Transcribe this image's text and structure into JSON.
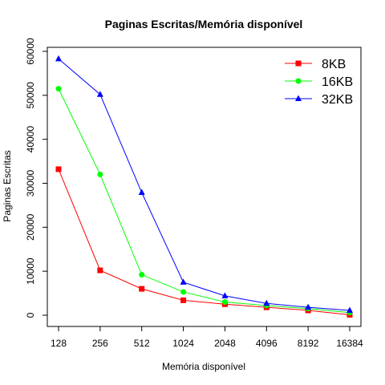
{
  "chart_data": {
    "type": "line",
    "title": "Paginas Escritas/Memória disponível",
    "xlabel": "Memória disponível",
    "ylabel": "Paginas Escritas",
    "categories": [
      "128",
      "256",
      "512",
      "1024",
      "2048",
      "4096",
      "8192",
      "16384"
    ],
    "ylim": [
      0,
      60000
    ],
    "yticks": [
      0,
      10000,
      20000,
      30000,
      40000,
      50000,
      60000
    ],
    "ytick_labels": [
      "0",
      "10000",
      "20000",
      "30000",
      "40000",
      "50000",
      "60000"
    ],
    "legend_position": "top-right",
    "grid": false,
    "series": [
      {
        "name": "8KB",
        "color": "#ff0000",
        "marker": "square",
        "values": [
          33200,
          10200,
          6000,
          3400,
          2500,
          1800,
          1100,
          100
        ]
      },
      {
        "name": "16KB",
        "color": "#00ff00",
        "marker": "circle",
        "values": [
          51500,
          32000,
          9200,
          5300,
          3000,
          2200,
          1500,
          600
        ]
      },
      {
        "name": "32KB",
        "color": "#0000ff",
        "marker": "triangle",
        "values": [
          58300,
          50200,
          27900,
          7500,
          4400,
          2700,
          1800,
          1100
        ]
      }
    ]
  }
}
